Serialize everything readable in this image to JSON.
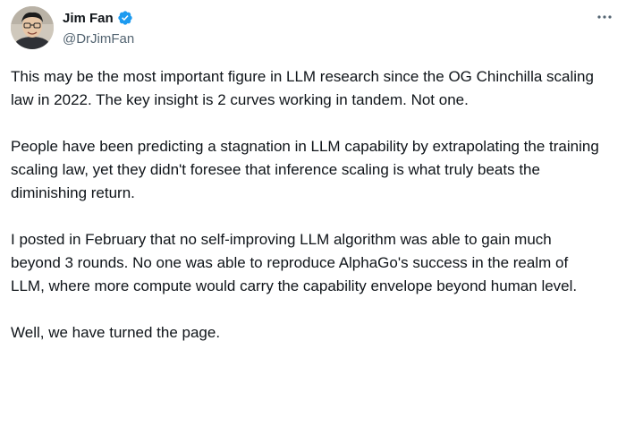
{
  "author": {
    "display_name": "Jim Fan",
    "handle": "@DrJimFan",
    "verified_icon": "verified-badge-icon",
    "accent_color": "#1d9bf0"
  },
  "menu": {
    "more_icon": "more-options-icon"
  },
  "tweet": {
    "paragraphs": [
      "This may be the most important figure in LLM research since the OG Chinchilla scaling law in 2022. The key insight is 2 curves working in tandem. Not one.",
      "People have been predicting a stagnation in LLM capability by extrapolating the training scaling law, yet they didn't foresee that inference scaling is what truly beats the diminishing return.",
      "I posted in February that no self-improving LLM algorithm was able to gain much beyond 3 rounds. No one was able to reproduce AlphaGo's success in the realm of LLM, where more compute would carry the capability envelope beyond human level.",
      "Well, we have turned the page."
    ]
  }
}
